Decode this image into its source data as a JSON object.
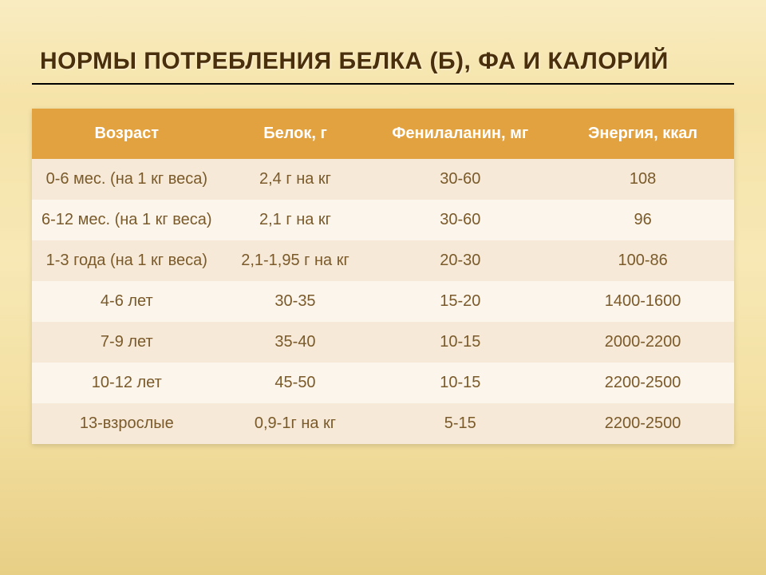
{
  "title": "НОРМЫ ПОТРЕБЛЕНИЯ БЕЛКА (Б), ФА И КАЛОРИЙ",
  "table": {
    "columns": [
      "Возраст",
      "Белок, г",
      "Фенилаланин, мг",
      "Энергия, ккал"
    ],
    "column_widths_pct": [
      27,
      21,
      26,
      26
    ],
    "header_bg": "#e3a240",
    "header_fg": "#ffffff",
    "row_odd_bg": "#f6e9d7",
    "row_even_bg": "#fcf5eb",
    "cell_fg": "#7a5a2a",
    "font_size_pt": 15,
    "rows": [
      [
        "0-6 мес. (на 1 кг веса)",
        "2,4 г на кг",
        "30-60",
        "108"
      ],
      [
        "6-12 мес. (на 1 кг веса)",
        "2,1 г на кг",
        "30-60",
        "96"
      ],
      [
        "1-3 года (на 1 кг веса)",
        "2,1-1,95 г на кг",
        "20-30",
        "100-86"
      ],
      [
        "4-6 лет",
        "30-35",
        "15-20",
        "1400-1600"
      ],
      [
        "7-9 лет",
        "35-40",
        "10-15",
        "2000-2200"
      ],
      [
        "10-12 лет",
        "45-50",
        "10-15",
        "2200-2500"
      ],
      [
        "13-взрослые",
        "0,9-1г на кг",
        "5-15",
        "2200-2500"
      ]
    ]
  },
  "style": {
    "background_gradient": [
      "#f9ecc1",
      "#f5e3a8",
      "#f7e8b5",
      "#f3e0a2",
      "#e8cf86"
    ],
    "title_color": "#4a2f0d",
    "title_fontsize_pt": 22,
    "title_underline_color": "#000000"
  }
}
